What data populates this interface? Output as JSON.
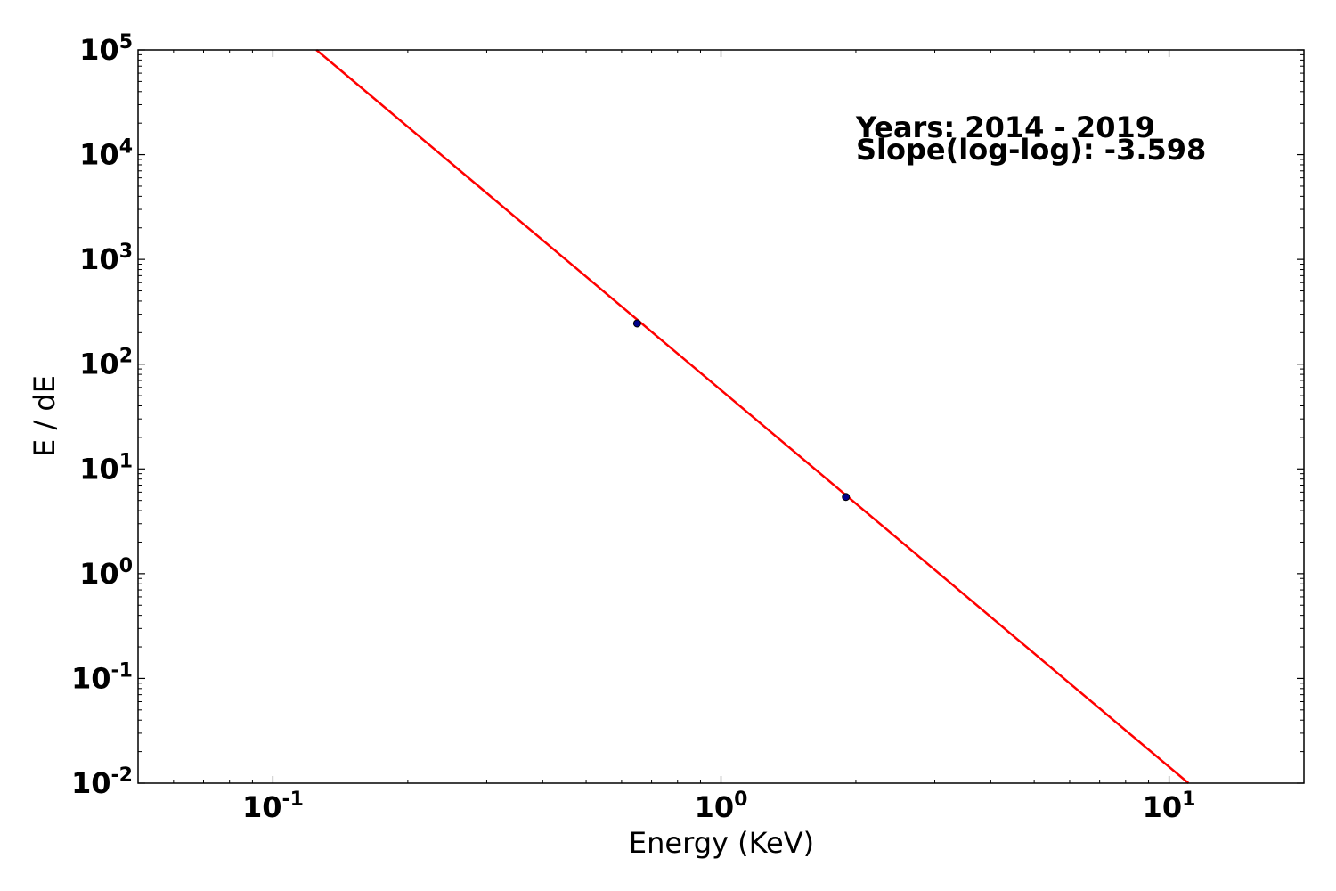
{
  "chart_data": {
    "type": "scatter",
    "title": "",
    "xlabel": "Energy (KeV)",
    "ylabel": "E / dE",
    "xscale": "log",
    "yscale": "log",
    "xlim": [
      0.05,
      20
    ],
    "ylim": [
      0.01,
      100000
    ],
    "grid": false,
    "x_ticks": [
      {
        "base": "10",
        "exp": "-1",
        "value": 0.1
      },
      {
        "base": "10",
        "exp": "0",
        "value": 1
      },
      {
        "base": "10",
        "exp": "1",
        "value": 10
      }
    ],
    "y_ticks": [
      {
        "base": "10",
        "exp": "-2",
        "value": 0.01
      },
      {
        "base": "10",
        "exp": "-1",
        "value": 0.1
      },
      {
        "base": "10",
        "exp": "0",
        "value": 1
      },
      {
        "base": "10",
        "exp": "1",
        "value": 10
      },
      {
        "base": "10",
        "exp": "2",
        "value": 100
      },
      {
        "base": "10",
        "exp": "3",
        "value": 1000
      },
      {
        "base": "10",
        "exp": "4",
        "value": 10000
      },
      {
        "base": "10",
        "exp": "5",
        "value": 100000
      }
    ],
    "points": [
      {
        "x": 0.65,
        "y": 245
      },
      {
        "x": 1.9,
        "y": 5.4
      }
    ],
    "fit_line": {
      "x": [
        0.125,
        11.05
      ],
      "y": [
        100000,
        0.01
      ],
      "color": "#ff0000"
    },
    "point_color": "#00008b",
    "annotations": [
      "Years: 2014 - 2019",
      "Slope(log-log): -3.598"
    ]
  }
}
